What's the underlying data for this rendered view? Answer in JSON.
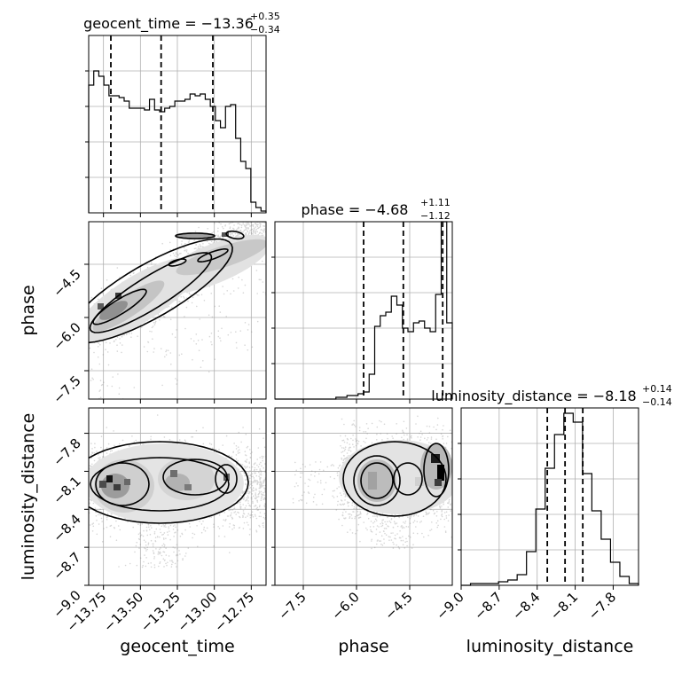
{
  "chart_data": {
    "type": "corner",
    "grid": true,
    "parameters": [
      {
        "name": "geocent_time",
        "range": [
          -13.85,
          -12.65
        ],
        "ticks": [
          -13.75,
          -13.5,
          -13.25,
          -13.0,
          -12.75
        ],
        "tick_labels": [
          "−13.75",
          "−13.50",
          "−13.25",
          "−13.00",
          "−12.75"
        ],
        "quantiles": [
          -13.7,
          -13.36,
          -13.01
        ]
      },
      {
        "name": "phase",
        "range": [
          -8.3,
          -3.3
        ],
        "ticks": [
          -7.5,
          -6.0,
          -4.5
        ],
        "tick_labels": [
          "−7.5",
          "−6.0",
          "−4.5"
        ],
        "quantiles": [
          -5.8,
          -4.68,
          -3.57
        ]
      },
      {
        "name": "luminosity_distance",
        "range": [
          -9.0,
          -7.6
        ],
        "ticks": [
          -9.0,
          -8.7,
          -8.4,
          -8.1,
          -7.8
        ],
        "tick_labels": [
          "−9.0",
          "−8.7",
          "−8.4",
          "−8.1",
          "−7.8"
        ],
        "quantiles": [
          -8.32,
          -8.18,
          -8.04
        ]
      }
    ],
    "diagonal_titles": [
      {
        "param": "geocent_time",
        "base": "geocent_time = −13.36",
        "sup": "+0.35",
        "sub": "−0.34"
      },
      {
        "param": "phase",
        "base": "phase = −4.68",
        "sup": "+1.11",
        "sub": "−1.12"
      },
      {
        "param": "luminosity_distance",
        "base": "luminosity_distance = −8.18",
        "sup": "+0.14",
        "sub": "−0.14"
      }
    ],
    "histograms": {
      "geocent_time": [
        0.72,
        0.8,
        0.77,
        0.72,
        0.66,
        0.66,
        0.65,
        0.63,
        0.59,
        0.59,
        0.59,
        0.58,
        0.64,
        0.58,
        0.57,
        0.59,
        0.6,
        0.63,
        0.63,
        0.64,
        0.67,
        0.66,
        0.67,
        0.64,
        0.6,
        0.52,
        0.48,
        0.6,
        0.61,
        0.42,
        0.29,
        0.25,
        0.06,
        0.03,
        0.01
      ],
      "phase": [
        0.0,
        0.0,
        0.0,
        0.0,
        0.0,
        0.0,
        0.0,
        0.0,
        0.0,
        0.0,
        0.0,
        0.01,
        0.01,
        0.02,
        0.02,
        0.03,
        0.04,
        0.14,
        0.41,
        0.47,
        0.49,
        0.58,
        0.53,
        0.4,
        0.38,
        0.43,
        0.44,
        0.4,
        0.38,
        0.59,
        1.0,
        0.43
      ],
      "luminosity_distance": [
        0.0,
        0.01,
        0.01,
        0.01,
        0.02,
        0.03,
        0.06,
        0.19,
        0.43,
        0.66,
        0.85,
        0.97,
        0.92,
        0.63,
        0.42,
        0.26,
        0.13,
        0.05,
        0.01
      ]
    },
    "hist_y_ticks": {
      "geocent_time": [
        0.2,
        0.4,
        0.6,
        0.8
      ],
      "phase": [
        0.2,
        0.4,
        0.6,
        0.8
      ],
      "luminosity_distance": [
        0.2,
        0.4,
        0.6,
        0.8
      ]
    }
  }
}
